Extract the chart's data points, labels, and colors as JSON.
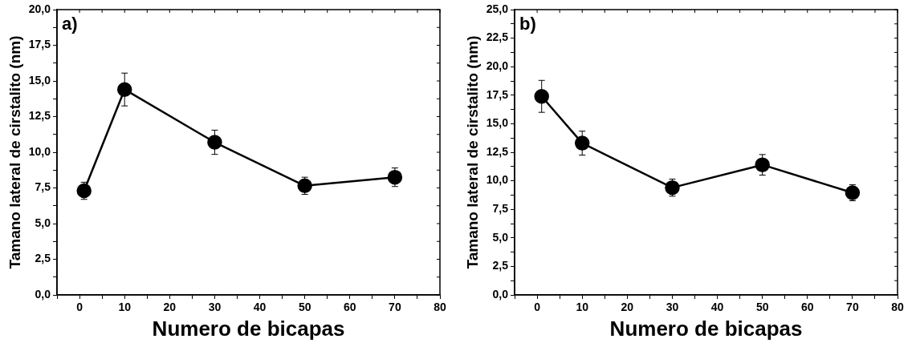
{
  "chart_data": [
    {
      "type": "line",
      "xlabel": "Numero de bicapas",
      "ylabel": "Tamano lateral de cirstalito (nm)",
      "annotations": [
        "a)"
      ],
      "x": [
        1,
        10,
        30,
        50,
        70
      ],
      "series": [
        {
          "color": "#000000",
          "values": [
            7.3,
            14.4,
            10.7,
            7.65,
            8.25
          ],
          "errors": [
            0.6,
            1.15,
            0.85,
            0.6,
            0.65
          ]
        }
      ],
      "xlim": [
        -5,
        80
      ],
      "xticks": [
        {
          "value": -5,
          "label": null
        },
        0,
        {
          "value": 5,
          "label": null
        },
        10,
        {
          "value": 15,
          "label": null
        },
        20,
        {
          "value": 25,
          "label": null
        },
        30,
        {
          "value": 35,
          "label": null
        },
        40,
        {
          "value": 45,
          "label": null
        },
        50,
        {
          "value": 55,
          "label": null
        },
        60,
        {
          "value": 65,
          "label": null
        },
        70,
        {
          "value": 75,
          "label": null
        },
        80
      ],
      "ylim": [
        0,
        20
      ],
      "yticks": [
        {
          "value": 0,
          "label": "0,0"
        },
        {
          "value": 1.25,
          "label": null
        },
        {
          "value": 2.5,
          "label": "2,5"
        },
        {
          "value": 3.75,
          "label": null
        },
        {
          "value": 5,
          "label": "5,0"
        },
        {
          "value": 6.25,
          "label": null
        },
        {
          "value": 7.5,
          "label": "7,5"
        },
        {
          "value": 8.75,
          "label": null
        },
        {
          "value": 10,
          "label": "10,0"
        },
        {
          "value": 11.25,
          "label": null
        },
        {
          "value": 12.5,
          "label": "12,5"
        },
        {
          "value": 13.75,
          "label": null
        },
        {
          "value": 15,
          "label": "15,0"
        },
        {
          "value": 16.25,
          "label": null
        },
        {
          "value": 17.5,
          "label": "17,5"
        },
        {
          "value": 18.75,
          "label": null
        },
        {
          "value": 20,
          "label": "20,0"
        }
      ],
      "grid": false,
      "legend": false,
      "marker": "circle",
      "line_style": "solid"
    },
    {
      "type": "line",
      "xlabel": "Numero de bicapas",
      "ylabel": "Tamano lateral de cirstalito (nm)",
      "annotations": [
        "b)"
      ],
      "x": [
        1,
        10,
        30,
        50,
        70
      ],
      "series": [
        {
          "color": "#000000",
          "values": [
            17.4,
            13.3,
            9.4,
            11.4,
            8.95
          ],
          "errors": [
            1.4,
            1.05,
            0.75,
            0.9,
            0.7
          ]
        }
      ],
      "xlim": [
        -5,
        80
      ],
      "xticks": [
        {
          "value": -5,
          "label": null
        },
        0,
        {
          "value": 5,
          "label": null
        },
        10,
        {
          "value": 15,
          "label": null
        },
        20,
        {
          "value": 25,
          "label": null
        },
        30,
        {
          "value": 35,
          "label": null
        },
        40,
        {
          "value": 45,
          "label": null
        },
        50,
        {
          "value": 55,
          "label": null
        },
        60,
        {
          "value": 65,
          "label": null
        },
        70,
        {
          "value": 75,
          "label": null
        },
        80
      ],
      "ylim": [
        0,
        25
      ],
      "yticks": [
        {
          "value": 0,
          "label": "0,0"
        },
        {
          "value": 1.25,
          "label": null
        },
        {
          "value": 2.5,
          "label": "2,5"
        },
        {
          "value": 3.75,
          "label": null
        },
        {
          "value": 5,
          "label": "5,0"
        },
        {
          "value": 6.25,
          "label": null
        },
        {
          "value": 7.5,
          "label": "7,5"
        },
        {
          "value": 8.75,
          "label": null
        },
        {
          "value": 10,
          "label": "10,0"
        },
        {
          "value": 11.25,
          "label": null
        },
        {
          "value": 12.5,
          "label": "12,5"
        },
        {
          "value": 13.75,
          "label": null
        },
        {
          "value": 15,
          "label": "15,0"
        },
        {
          "value": 16.25,
          "label": null
        },
        {
          "value": 17.5,
          "label": "17,5"
        },
        {
          "value": 18.75,
          "label": null
        },
        {
          "value": 20,
          "label": "20,0"
        },
        {
          "value": 21.25,
          "label": null
        },
        {
          "value": 22.5,
          "label": "22,5"
        },
        {
          "value": 23.75,
          "label": null
        },
        {
          "value": 25,
          "label": "25,0"
        }
      ],
      "grid": false,
      "legend": false,
      "marker": "circle",
      "line_style": "solid"
    }
  ]
}
